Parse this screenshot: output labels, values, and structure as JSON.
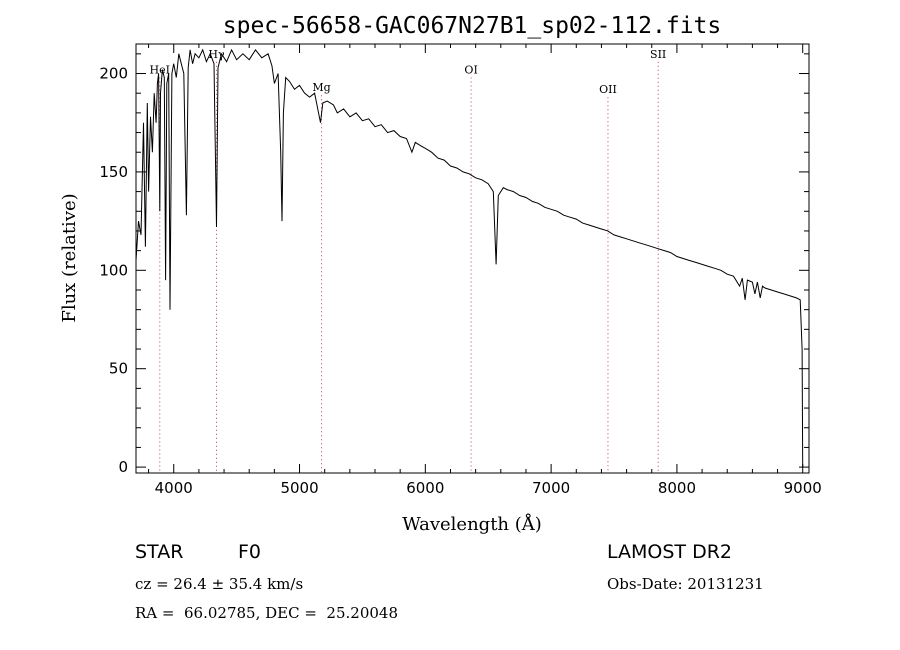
{
  "chart_data": {
    "type": "line",
    "title": "spec-56658-GAC067N27B1_sp02-112.fits",
    "xlabel": "Wavelength (Å)",
    "ylabel": "Flux (relative)",
    "xlim": [
      3700,
      9050
    ],
    "ylim": [
      -3,
      215
    ],
    "xticks": [
      4000,
      5000,
      6000,
      7000,
      8000,
      9000
    ],
    "yticks": [
      0,
      50,
      100,
      150,
      200
    ],
    "grid": false,
    "line_color": "#000000",
    "marker_color": "#c04040",
    "series": [
      {
        "points": [
          [
            3700,
            105
          ],
          [
            3720,
            125
          ],
          [
            3740,
            118
          ],
          [
            3760,
            175
          ],
          [
            3775,
            112
          ],
          [
            3790,
            185
          ],
          [
            3800,
            140
          ],
          [
            3815,
            178
          ],
          [
            3830,
            160
          ],
          [
            3845,
            190
          ],
          [
            3860,
            175
          ],
          [
            3870,
            195
          ],
          [
            3880,
            200
          ],
          [
            3889,
            130
          ],
          [
            3895,
            190
          ],
          [
            3910,
            202
          ],
          [
            3925,
            198
          ],
          [
            3935,
            95
          ],
          [
            3945,
            195
          ],
          [
            3960,
            200
          ],
          [
            3970,
            80
          ],
          [
            3985,
            200
          ],
          [
            4000,
            205
          ],
          [
            4020,
            198
          ],
          [
            4040,
            210
          ],
          [
            4060,
            205
          ],
          [
            4080,
            200
          ],
          [
            4101,
            128
          ],
          [
            4115,
            203
          ],
          [
            4130,
            212
          ],
          [
            4150,
            205
          ],
          [
            4170,
            210
          ],
          [
            4200,
            208
          ],
          [
            4230,
            212
          ],
          [
            4260,
            206
          ],
          [
            4290,
            210
          ],
          [
            4320,
            205
          ],
          [
            4340,
            122
          ],
          [
            4352,
            203
          ],
          [
            4380,
            210
          ],
          [
            4420,
            206
          ],
          [
            4460,
            212
          ],
          [
            4500,
            207
          ],
          [
            4550,
            210
          ],
          [
            4600,
            207
          ],
          [
            4650,
            212
          ],
          [
            4700,
            208
          ],
          [
            4750,
            210
          ],
          [
            4780,
            204
          ],
          [
            4800,
            195
          ],
          [
            4830,
            200
          ],
          [
            4850,
            160
          ],
          [
            4861,
            125
          ],
          [
            4872,
            180
          ],
          [
            4890,
            198
          ],
          [
            4920,
            196
          ],
          [
            4960,
            192
          ],
          [
            5000,
            194
          ],
          [
            5040,
            190
          ],
          [
            5080,
            188
          ],
          [
            5120,
            190
          ],
          [
            5167,
            175
          ],
          [
            5185,
            185
          ],
          [
            5220,
            186
          ],
          [
            5270,
            184
          ],
          [
            5300,
            180
          ],
          [
            5350,
            182
          ],
          [
            5400,
            178
          ],
          [
            5450,
            180
          ],
          [
            5500,
            176
          ],
          [
            5550,
            177
          ],
          [
            5600,
            173
          ],
          [
            5650,
            174
          ],
          [
            5700,
            170
          ],
          [
            5750,
            171
          ],
          [
            5800,
            168
          ],
          [
            5850,
            167
          ],
          [
            5893,
            160
          ],
          [
            5920,
            165
          ],
          [
            5970,
            163
          ],
          [
            6000,
            162
          ],
          [
            6050,
            160
          ],
          [
            6100,
            157
          ],
          [
            6150,
            156
          ],
          [
            6200,
            153
          ],
          [
            6250,
            152
          ],
          [
            6300,
            150
          ],
          [
            6350,
            149
          ],
          [
            6400,
            147
          ],
          [
            6450,
            146
          ],
          [
            6500,
            144
          ],
          [
            6540,
            140
          ],
          [
            6563,
            103
          ],
          [
            6580,
            138
          ],
          [
            6620,
            142
          ],
          [
            6650,
            141
          ],
          [
            6700,
            140
          ],
          [
            6750,
            138
          ],
          [
            6800,
            137
          ],
          [
            6850,
            135
          ],
          [
            6900,
            134
          ],
          [
            6950,
            132
          ],
          [
            7000,
            131
          ],
          [
            7050,
            130
          ],
          [
            7100,
            128
          ],
          [
            7150,
            127
          ],
          [
            7200,
            126
          ],
          [
            7250,
            124
          ],
          [
            7300,
            123
          ],
          [
            7350,
            122
          ],
          [
            7400,
            121
          ],
          [
            7450,
            120
          ],
          [
            7500,
            118
          ],
          [
            7550,
            117
          ],
          [
            7600,
            116
          ],
          [
            7650,
            115
          ],
          [
            7700,
            114
          ],
          [
            7750,
            113
          ],
          [
            7800,
            112
          ],
          [
            7850,
            111
          ],
          [
            7900,
            110
          ],
          [
            7950,
            109
          ],
          [
            8000,
            107
          ],
          [
            8050,
            106
          ],
          [
            8100,
            105
          ],
          [
            8150,
            104
          ],
          [
            8200,
            103
          ],
          [
            8250,
            102
          ],
          [
            8300,
            101
          ],
          [
            8350,
            100
          ],
          [
            8400,
            98
          ],
          [
            8450,
            97
          ],
          [
            8498,
            92
          ],
          [
            8520,
            96
          ],
          [
            8542,
            85
          ],
          [
            8560,
            95
          ],
          [
            8600,
            94
          ],
          [
            8620,
            88
          ],
          [
            8640,
            94
          ],
          [
            8662,
            86
          ],
          [
            8680,
            92
          ],
          [
            8700,
            91
          ],
          [
            8750,
            90
          ],
          [
            8800,
            89
          ],
          [
            8850,
            88
          ],
          [
            8900,
            87
          ],
          [
            8950,
            86
          ],
          [
            8980,
            85
          ],
          [
            8995,
            60
          ],
          [
            9000,
            0
          ]
        ]
      }
    ],
    "line_markers": [
      {
        "label": "HeI",
        "x": 3889,
        "label_y": 200
      },
      {
        "label": "Hγ",
        "x": 4340,
        "label_y": 208
      },
      {
        "label": "Mg",
        "x": 5175,
        "label_y": 191
      },
      {
        "label": "OI",
        "x": 6364,
        "label_y": 200
      },
      {
        "label": "OII",
        "x": 7452,
        "label_y": 190
      },
      {
        "label": "SII",
        "x": 7851,
        "label_y": 208
      }
    ]
  },
  "info": {
    "object_class": "STAR",
    "subclass": "F0",
    "survey": "LAMOST DR2",
    "redshift": "cz = 26.4 ± 35.4 km/s",
    "obs_date": "Obs-Date: 20131231",
    "coords": "RA =  66.02785, DEC =  25.20048"
  }
}
